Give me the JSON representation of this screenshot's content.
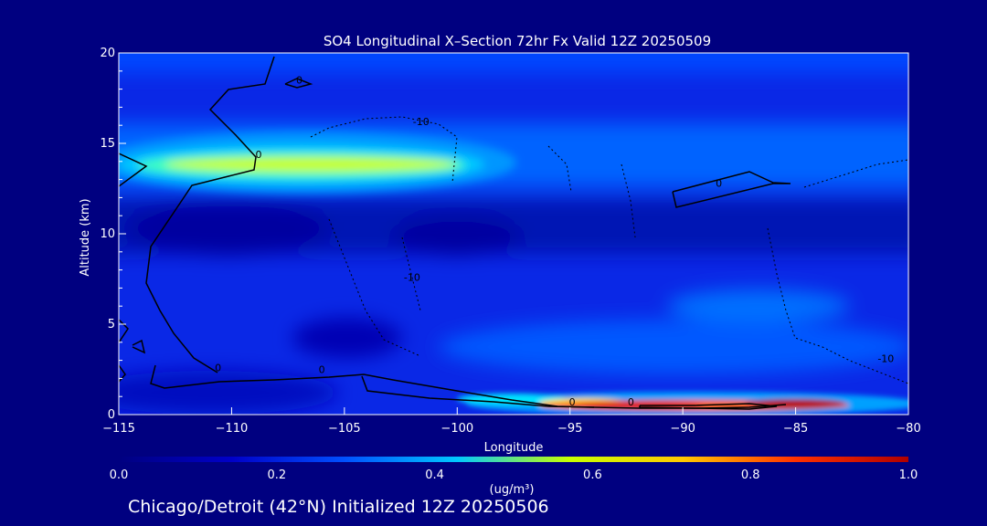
{
  "chart_data": {
    "type": "heatmap",
    "title": "SO4 Longitudinal X–Section 72hr  Fx Valid 12Z 20250509",
    "xlabel": "Longitude",
    "ylabel": "Altitude (km)",
    "xlim": [
      -115,
      -80
    ],
    "ylim": [
      0,
      20
    ],
    "xticks": [
      -115,
      -110,
      -105,
      -100,
      -95,
      -90,
      -85,
      -80
    ],
    "yticks": [
      0,
      5,
      10,
      15,
      20
    ],
    "colorbar": {
      "label": "(ug/m³)",
      "range": [
        0.0,
        1.0
      ],
      "ticks": [
        "0.0",
        "0.2",
        "0.4",
        "0.6",
        "0.8",
        "1.0"
      ],
      "colors": [
        "#000080",
        "#0000c8",
        "#0050ff",
        "#00c8ff",
        "#c8ff00",
        "#ffc800",
        "#ff3000",
        "#b00000"
      ]
    },
    "footer": "Chicago/Detroit (42°N) Initialized 12Z 20250506",
    "features": [
      {
        "name": "upper-layer-plume",
        "altitude_km": 13.8,
        "lon_range": [
          -115,
          -100
        ],
        "peak_value": 0.6
      },
      {
        "name": "surface-layer-plume",
        "altitude_km": 0.5,
        "lon_range": [
          -100,
          -80
        ],
        "peak_value": 1.0,
        "peak_lon": -85
      }
    ],
    "contour_labels": [
      {
        "text": "0",
        "lon": -107,
        "alt": 18.3
      },
      {
        "text": "-10",
        "lon": -101.6,
        "alt": 16.0
      },
      {
        "text": "0",
        "lon": -88.4,
        "alt": 12.6
      },
      {
        "text": "0",
        "lon": -108.8,
        "alt": 14.2
      },
      {
        "text": "-10",
        "lon": -102,
        "alt": 7.4
      },
      {
        "text": "0",
        "lon": -110.6,
        "alt": 2.4
      },
      {
        "text": "0",
        "lon": -106,
        "alt": 2.3
      },
      {
        "text": "0",
        "lon": -94.9,
        "alt": 0.5
      },
      {
        "text": "0",
        "lon": -92.3,
        "alt": 0.5
      },
      {
        "text": "-10",
        "lon": -81,
        "alt": 2.9
      }
    ]
  }
}
